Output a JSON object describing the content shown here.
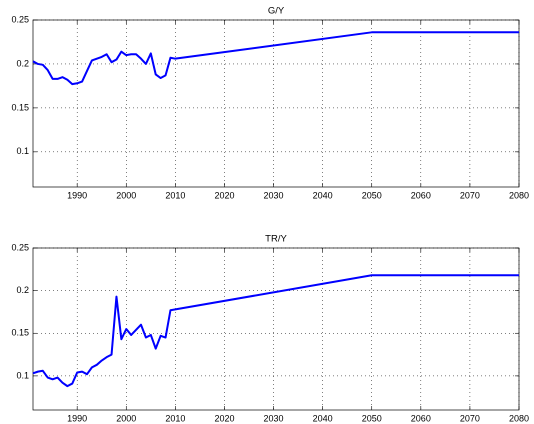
{
  "chart_data": [
    {
      "type": "line",
      "title": "G/Y",
      "x": [
        1981,
        1982,
        1983,
        1984,
        1985,
        1986,
        1987,
        1988,
        1989,
        1990,
        1991,
        1992,
        1993,
        1994,
        1995,
        1996,
        1997,
        1998,
        1999,
        2000,
        2001,
        2002,
        2003,
        2004,
        2005,
        2006,
        2007,
        2008,
        2009,
        2010,
        2050,
        2080
      ],
      "series": [
        {
          "color": "#0000ff",
          "values": [
            0.203,
            0.2,
            0.199,
            0.193,
            0.183,
            0.183,
            0.185,
            0.182,
            0.177,
            0.178,
            0.18,
            0.192,
            0.204,
            0.206,
            0.208,
            0.211,
            0.202,
            0.205,
            0.214,
            0.21,
            0.211,
            0.211,
            0.206,
            0.2,
            0.212,
            0.188,
            0.184,
            0.187,
            0.207,
            0.206,
            0.236,
            0.236
          ]
        }
      ],
      "xlim": [
        1981,
        2080
      ],
      "xticks": [
        1990,
        2000,
        2010,
        2020,
        2030,
        2040,
        2050,
        2060,
        2070,
        2080
      ],
      "ylim": [
        0.06,
        0.25
      ],
      "yticks": [
        0.1,
        0.15,
        0.2,
        0.25
      ],
      "grid": true
    },
    {
      "type": "line",
      "title": "TR/Y",
      "x": [
        1981,
        1982,
        1983,
        1984,
        1985,
        1986,
        1987,
        1988,
        1989,
        1990,
        1991,
        1992,
        1993,
        1994,
        1995,
        1996,
        1997,
        1998,
        1999,
        2000,
        2001,
        2002,
        2003,
        2004,
        2005,
        2006,
        2007,
        2008,
        2009,
        2010,
        2050,
        2080
      ],
      "series": [
        {
          "color": "#0000ff",
          "values": [
            0.103,
            0.105,
            0.106,
            0.098,
            0.096,
            0.098,
            0.092,
            0.088,
            0.091,
            0.104,
            0.105,
            0.102,
            0.11,
            0.113,
            0.118,
            0.122,
            0.125,
            0.193,
            0.143,
            0.155,
            0.148,
            0.154,
            0.16,
            0.145,
            0.148,
            0.132,
            0.147,
            0.145,
            0.177,
            0.178,
            0.218,
            0.218
          ]
        }
      ],
      "xlim": [
        1981,
        2080
      ],
      "xticks": [
        1990,
        2000,
        2010,
        2020,
        2030,
        2040,
        2050,
        2060,
        2070,
        2080
      ],
      "ylim": [
        0.06,
        0.25
      ],
      "yticks": [
        0.1,
        0.15,
        0.2,
        0.25
      ],
      "grid": true
    }
  ]
}
